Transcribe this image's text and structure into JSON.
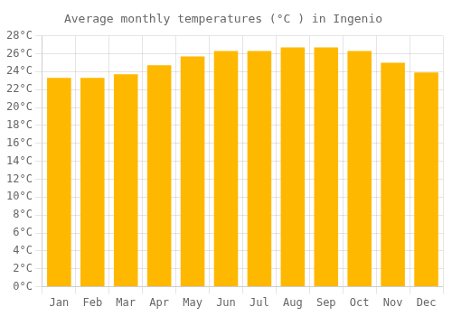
{
  "chart_data": {
    "type": "bar",
    "title": "Average monthly temperatures (°C ) in Ingenio",
    "categories": [
      "Jan",
      "Feb",
      "Mar",
      "Apr",
      "May",
      "Jun",
      "Jul",
      "Aug",
      "Sep",
      "Oct",
      "Nov",
      "Dec"
    ],
    "values": [
      23.3,
      23.3,
      23.7,
      24.7,
      25.7,
      26.3,
      26.3,
      26.7,
      26.7,
      26.3,
      25.0,
      23.9
    ],
    "color": "#FFB800",
    "ylim": [
      0,
      28
    ],
    "yticks": [
      {
        "value": 0,
        "label": "0°C"
      },
      {
        "value": 2,
        "label": "2°C"
      },
      {
        "value": 4,
        "label": "4°C"
      },
      {
        "value": 6,
        "label": "6°C"
      },
      {
        "value": 8,
        "label": "8°C"
      },
      {
        "value": 10,
        "label": "10°C"
      },
      {
        "value": 12,
        "label": "12°C"
      },
      {
        "value": 14,
        "label": "14°C"
      },
      {
        "value": 16,
        "label": "16°C"
      },
      {
        "value": 18,
        "label": "18°C"
      },
      {
        "value": 20,
        "label": "20°C"
      },
      {
        "value": 22,
        "label": "22°C"
      },
      {
        "value": 24,
        "label": "24°C"
      },
      {
        "value": 26,
        "label": "26°C"
      },
      {
        "value": 28,
        "label": "28°C"
      }
    ],
    "grid": true
  }
}
